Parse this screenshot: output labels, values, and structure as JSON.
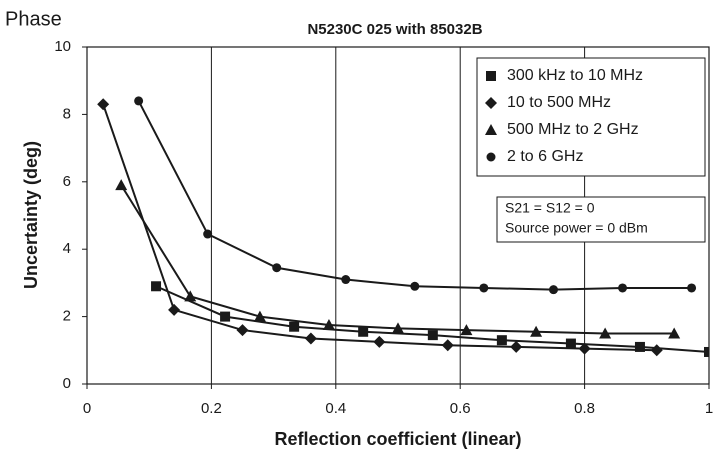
{
  "chart_data": {
    "type": "line",
    "page_label": "Phase",
    "title": "N5230C 025 with 85032B",
    "x_label": "Reflection coefficient (linear)",
    "y_label": "Uncertainty (deg)",
    "annotations": [
      "S21 = S12 = 0",
      "Source power = 0 dBm"
    ],
    "xlim": [
      0,
      1
    ],
    "ylim": [
      0,
      10
    ],
    "xticks": [
      0,
      0.2,
      0.4,
      0.6,
      0.8,
      1
    ],
    "yticks": [
      0,
      2,
      4,
      6,
      8,
      10
    ],
    "grid": "x",
    "legend": "upper right",
    "series": [
      {
        "name": "300 kHz to 10 MHz",
        "color": "#1a1a1a",
        "marker": "square",
        "x": [
          0.111,
          0.222,
          0.333,
          0.444,
          0.556,
          0.667,
          0.778,
          0.889,
          1.0
        ],
        "values": [
          2.9,
          2.0,
          1.7,
          1.55,
          1.45,
          1.3,
          1.2,
          1.1,
          0.95
        ]
      },
      {
        "name": "10 to 500 MHz",
        "color": "#1a1a1a",
        "marker": "diamond",
        "x": [
          0.026,
          0.14,
          0.25,
          0.36,
          0.47,
          0.58,
          0.69,
          0.8,
          0.916
        ],
        "values": [
          8.3,
          2.2,
          1.6,
          1.35,
          1.25,
          1.15,
          1.1,
          1.05,
          1.0
        ]
      },
      {
        "name": "500 MHz to 2 GHz",
        "color": "#1a1a1a",
        "marker": "triangle",
        "x": [
          0.055,
          0.166,
          0.278,
          0.389,
          0.5,
          0.61,
          0.722,
          0.833,
          0.944
        ],
        "values": [
          5.9,
          2.6,
          2.0,
          1.75,
          1.65,
          1.6,
          1.55,
          1.5,
          1.5
        ]
      },
      {
        "name": "2 to 6 GHz",
        "color": "#1a1a1a",
        "marker": "circle",
        "x": [
          0.083,
          0.194,
          0.305,
          0.416,
          0.527,
          0.638,
          0.75,
          0.861,
          0.972
        ],
        "values": [
          8.4,
          4.45,
          3.45,
          3.1,
          2.9,
          2.85,
          2.8,
          2.85,
          2.85
        ]
      }
    ]
  }
}
